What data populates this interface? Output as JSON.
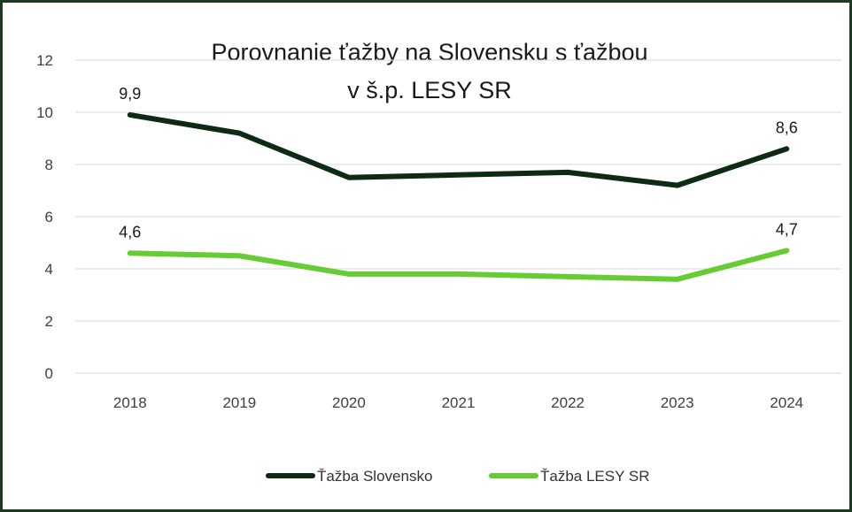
{
  "chart_data": {
    "type": "line",
    "title_line1": "Porovnanie ťažby na Slovensku s ťažbou",
    "title_line2": "v š.p. LESY SR",
    "categories": [
      "2018",
      "2019",
      "2020",
      "2021",
      "2022",
      "2023",
      "2024"
    ],
    "ylim": [
      0,
      12
    ],
    "yticks": [
      0,
      2,
      4,
      6,
      8,
      10,
      12
    ],
    "grid": true,
    "legend_position": "bottom",
    "series": [
      {
        "name": "Ťažba Slovensko",
        "color": "#0f2a14",
        "values": [
          9.9,
          9.2,
          7.5,
          7.6,
          7.7,
          7.2,
          8.6
        ],
        "labels": [
          "9,9",
          "",
          "",
          "",
          "",
          "",
          "8,6"
        ]
      },
      {
        "name": "Ťažba LESY SR",
        "color": "#66cc33",
        "values": [
          4.6,
          4.5,
          3.8,
          3.8,
          3.7,
          3.6,
          4.7
        ],
        "labels": [
          "4,6",
          "",
          "",
          "",
          "",
          "",
          "4,7"
        ]
      }
    ]
  }
}
